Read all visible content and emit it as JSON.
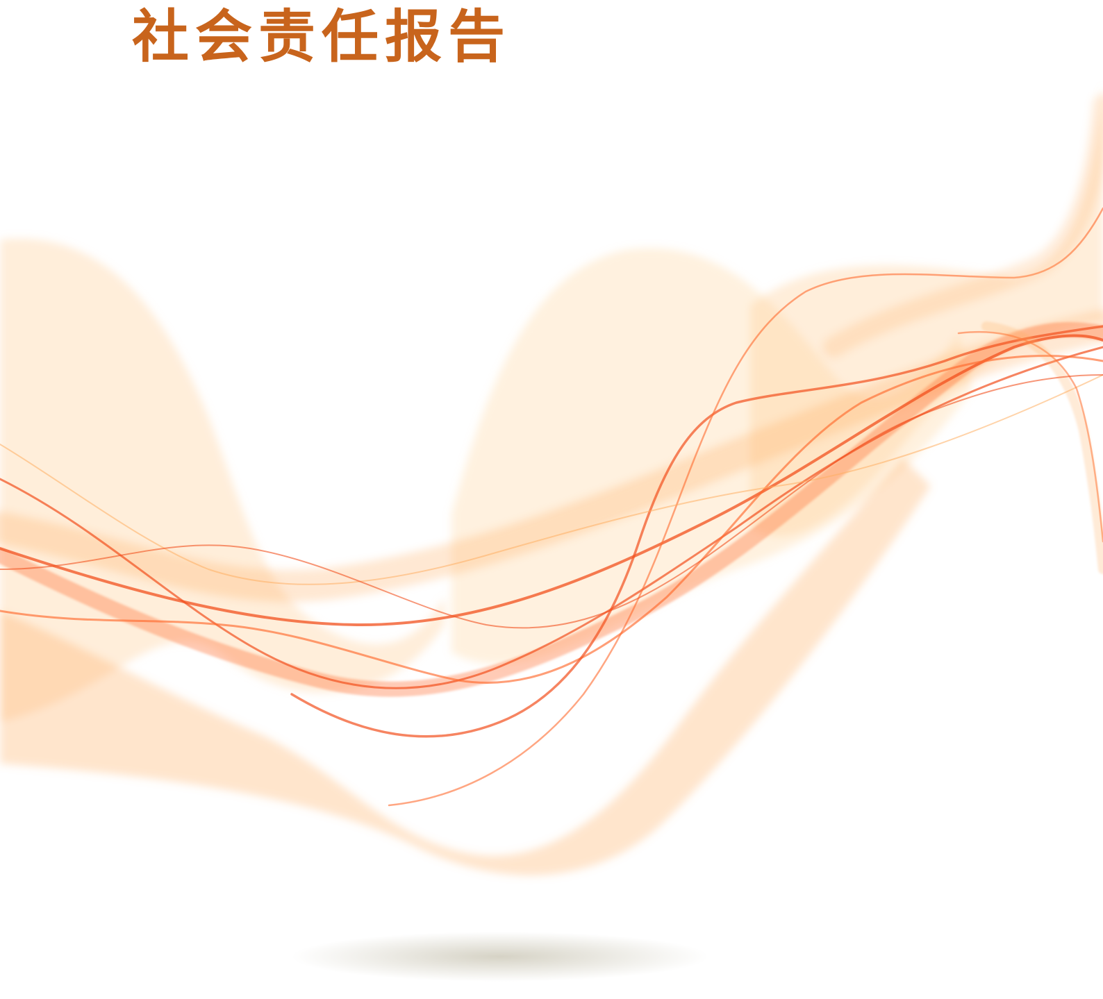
{
  "page": {
    "title": "社会责任报告"
  },
  "colors": {
    "title": "#c8641c",
    "wave_light": "#ffcf96",
    "wave_mid": "#ffae62",
    "wave_deep": "#ff6a2e",
    "wave_core": "#f2501e",
    "shadow": "#b4ae96"
  },
  "decoration": {
    "artwork": "flowing-orange-ribbon-waves",
    "shadow": "soft-ground-shadow"
  }
}
